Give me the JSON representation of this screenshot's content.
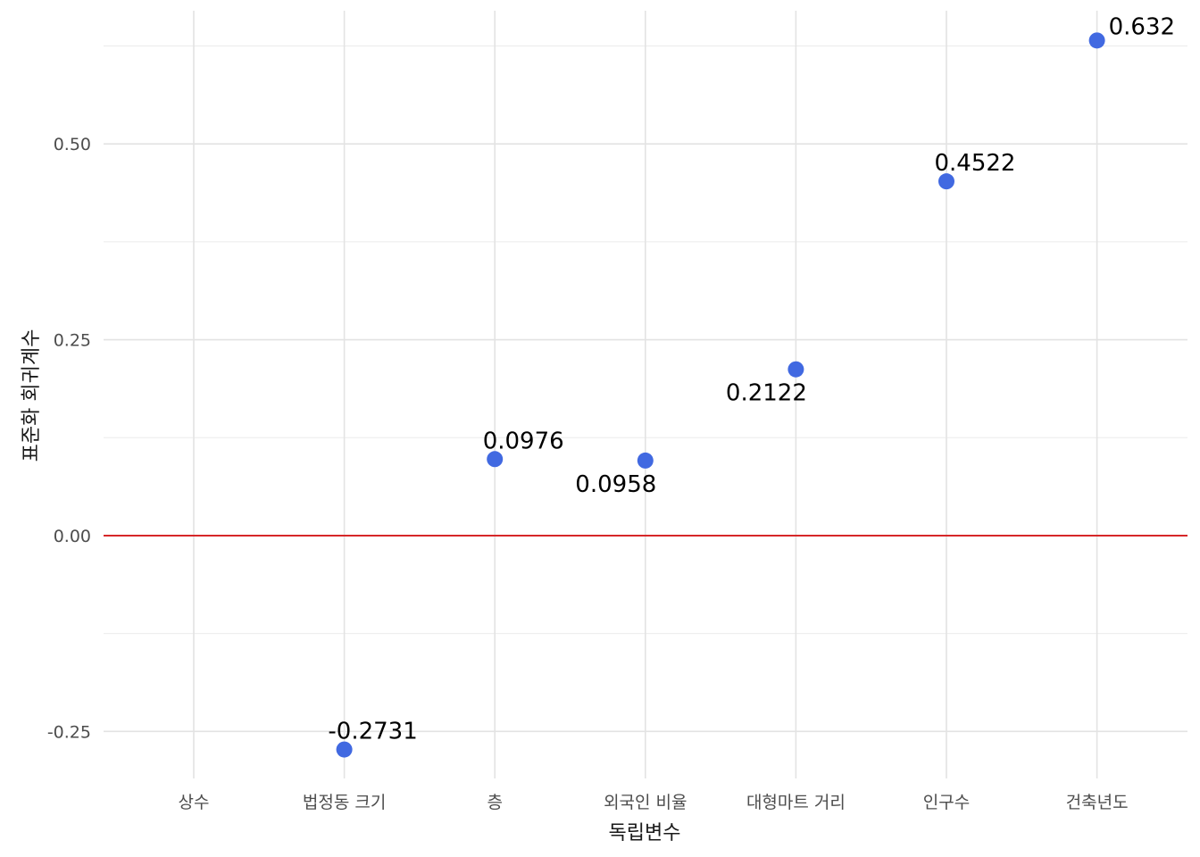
{
  "chart_data": {
    "type": "scatter",
    "categories": [
      "상수",
      "법정동 크기",
      "층",
      "외국인 비율",
      "대형마트 거리",
      "인구수",
      "건축년도"
    ],
    "values": [
      null,
      -0.2731,
      0.0976,
      0.0958,
      0.2122,
      0.4522,
      0.632
    ],
    "labels": [
      "",
      "-0.2731",
      "0.0976",
      "0.0958",
      "0.2122",
      "0.4522",
      "0.632"
    ],
    "label_position": [
      "",
      "above",
      "above",
      "below",
      "below",
      "above",
      "above-right"
    ],
    "xlabel": "독립변수",
    "ylabel": "표준화 회귀계수",
    "ylim": [
      -0.31,
      0.67
    ],
    "y_ticks": [
      -0.25,
      0,
      0.25,
      0.5
    ],
    "y_tick_labels": [
      "-0.25",
      "0.00",
      "0.25",
      "0.50"
    ],
    "reference_line": {
      "y": 0,
      "color": "#d62728"
    },
    "point_color": "#4169e1",
    "grid": true
  }
}
